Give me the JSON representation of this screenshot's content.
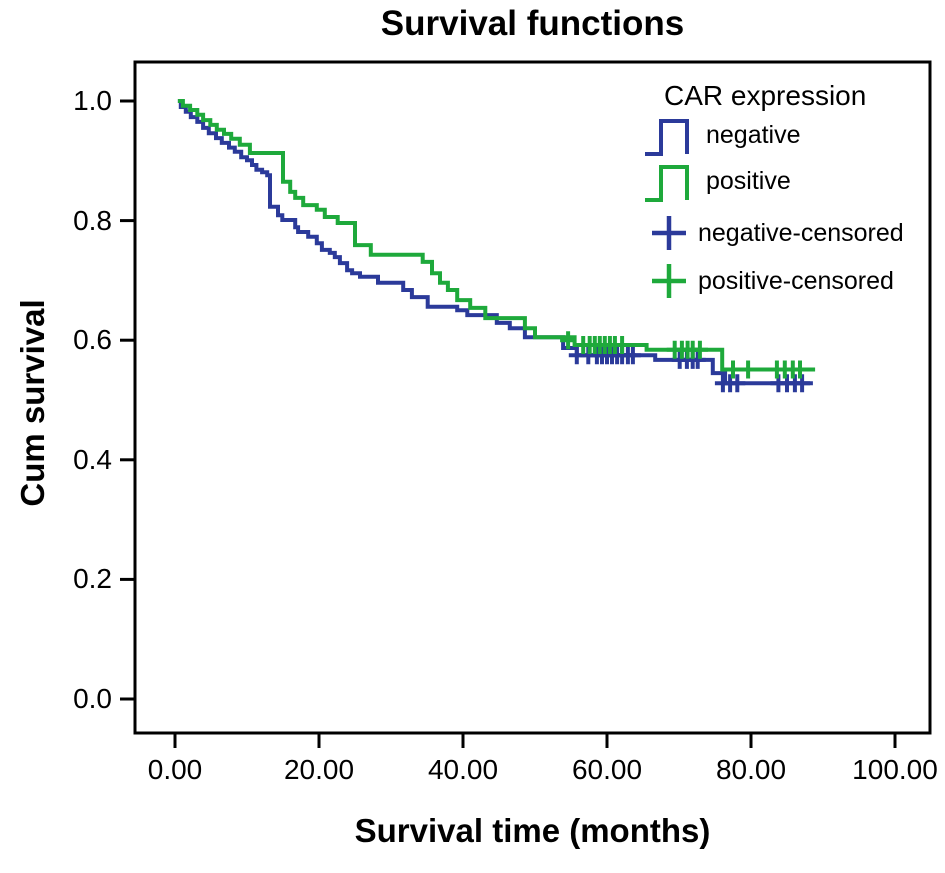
{
  "title": "Survival functions",
  "chart_data": {
    "type": "line",
    "subtype": "kaplan-meier-step",
    "title": "Survival functions",
    "xlabel": "Survival time (months)",
    "ylabel": "Cum survival",
    "xlim": [
      -5.5,
      104.8
    ],
    "ylim": [
      -0.062,
      1.065
    ],
    "grid": false,
    "legend_position": "top-right-inside",
    "frame_color": "#000000",
    "background_color": "#ffffff",
    "x_axis": {
      "tick_values": [
        0,
        20,
        40,
        60,
        80,
        100
      ],
      "tick_labels": [
        "0.00",
        "20.00",
        "40.00",
        "60.00",
        "80.00",
        "100.00"
      ]
    },
    "y_axis": {
      "tick_values": [
        0.0,
        0.2,
        0.4,
        0.6,
        0.8,
        1.0
      ],
      "tick_labels": [
        "0.0",
        "0.2",
        "0.4",
        "0.6",
        "0.8",
        "1.0"
      ]
    },
    "series": [
      {
        "name": "negative",
        "color": "#2b3a9a",
        "steps": [
          [
            0.4,
            1.0
          ],
          [
            0.8,
            0.99
          ],
          [
            1.5,
            0.982
          ],
          [
            2.2,
            0.973
          ],
          [
            3.1,
            0.965
          ],
          [
            3.9,
            0.955
          ],
          [
            4.7,
            0.946
          ],
          [
            5.7,
            0.938
          ],
          [
            6.5,
            0.93
          ],
          [
            7.5,
            0.922
          ],
          [
            8.3,
            0.915
          ],
          [
            9.2,
            0.906
          ],
          [
            10.0,
            0.901
          ],
          [
            10.7,
            0.893
          ],
          [
            11.3,
            0.885
          ],
          [
            12.1,
            0.881
          ],
          [
            12.8,
            0.876
          ],
          [
            13.2,
            0.823
          ],
          [
            14.3,
            0.809
          ],
          [
            14.9,
            0.801
          ],
          [
            16.7,
            0.789
          ],
          [
            17.1,
            0.781
          ],
          [
            18.5,
            0.773
          ],
          [
            19.7,
            0.762
          ],
          [
            20.4,
            0.751
          ],
          [
            21.5,
            0.746
          ],
          [
            22.2,
            0.739
          ],
          [
            22.9,
            0.729
          ],
          [
            23.9,
            0.717
          ],
          [
            24.6,
            0.712
          ],
          [
            25.7,
            0.706
          ],
          [
            28.2,
            0.696
          ],
          [
            31.7,
            0.684
          ],
          [
            32.9,
            0.672
          ],
          [
            35.1,
            0.656
          ],
          [
            39.2,
            0.65
          ],
          [
            40.6,
            0.642
          ],
          [
            44.7,
            0.629
          ],
          [
            46.5,
            0.62
          ],
          [
            48.6,
            0.605
          ],
          [
            53.9,
            0.587
          ],
          [
            55.8,
            0.575
          ],
          [
            66.7,
            0.567
          ],
          [
            74.7,
            0.545
          ],
          [
            76.4,
            0.528
          ],
          [
            88.6,
            0.528
          ]
        ],
        "censored": [
          [
            55.8,
            0.575
          ],
          [
            57.4,
            0.575
          ],
          [
            58.6,
            0.575
          ],
          [
            59.3,
            0.575
          ],
          [
            60.0,
            0.575
          ],
          [
            60.7,
            0.575
          ],
          [
            61.4,
            0.575
          ],
          [
            62.1,
            0.575
          ],
          [
            62.9,
            0.575
          ],
          [
            63.6,
            0.575
          ],
          [
            70.1,
            0.567
          ],
          [
            71.1,
            0.567
          ],
          [
            71.9,
            0.567
          ],
          [
            72.6,
            0.567
          ],
          [
            76.1,
            0.528
          ],
          [
            77.1,
            0.528
          ],
          [
            78.1,
            0.528
          ],
          [
            83.8,
            0.528
          ],
          [
            85.0,
            0.528
          ],
          [
            86.1,
            0.528
          ],
          [
            87.1,
            0.528
          ]
        ]
      },
      {
        "name": "positive",
        "color": "#1ea93b",
        "steps": [
          [
            0.4,
            1.0
          ],
          [
            1.1,
            0.992
          ],
          [
            2.1,
            0.985
          ],
          [
            3.1,
            0.977
          ],
          [
            3.9,
            0.968
          ],
          [
            4.9,
            0.96
          ],
          [
            5.8,
            0.952
          ],
          [
            6.8,
            0.945
          ],
          [
            7.8,
            0.937
          ],
          [
            9.0,
            0.927
          ],
          [
            10.4,
            0.913
          ],
          [
            15.0,
            0.865
          ],
          [
            16.0,
            0.848
          ],
          [
            16.7,
            0.838
          ],
          [
            17.8,
            0.826
          ],
          [
            19.7,
            0.818
          ],
          [
            20.8,
            0.806
          ],
          [
            22.6,
            0.796
          ],
          [
            25.0,
            0.759
          ],
          [
            27.2,
            0.743
          ],
          [
            34.4,
            0.731
          ],
          [
            35.7,
            0.712
          ],
          [
            36.8,
            0.696
          ],
          [
            37.9,
            0.684
          ],
          [
            39.2,
            0.667
          ],
          [
            41.0,
            0.654
          ],
          [
            43.1,
            0.637
          ],
          [
            48.6,
            0.62
          ],
          [
            50.0,
            0.605
          ],
          [
            55.5,
            0.592
          ],
          [
            65.5,
            0.584
          ],
          [
            76.0,
            0.551
          ],
          [
            88.9,
            0.551
          ]
        ],
        "censored": [
          [
            54.6,
            0.6
          ],
          [
            56.7,
            0.592
          ],
          [
            57.6,
            0.592
          ],
          [
            58.3,
            0.592
          ],
          [
            59.0,
            0.592
          ],
          [
            59.7,
            0.592
          ],
          [
            60.4,
            0.592
          ],
          [
            61.1,
            0.592
          ],
          [
            62.1,
            0.592
          ],
          [
            69.4,
            0.584
          ],
          [
            70.4,
            0.584
          ],
          [
            71.2,
            0.584
          ],
          [
            71.9,
            0.584
          ],
          [
            72.9,
            0.584
          ],
          [
            77.5,
            0.551
          ],
          [
            79.6,
            0.551
          ],
          [
            83.6,
            0.551
          ],
          [
            84.7,
            0.551
          ],
          [
            85.8,
            0.551
          ],
          [
            86.8,
            0.551
          ]
        ]
      }
    ]
  },
  "legend": {
    "title": "CAR expression",
    "items": [
      {
        "label": "negative",
        "type": "step-line",
        "series": "negative"
      },
      {
        "label": "positive",
        "type": "step-line",
        "series": "positive"
      },
      {
        "label": "negative-censored",
        "type": "plus",
        "series": "negative"
      },
      {
        "label": "positive-censored",
        "type": "plus",
        "series": "positive"
      }
    ]
  }
}
